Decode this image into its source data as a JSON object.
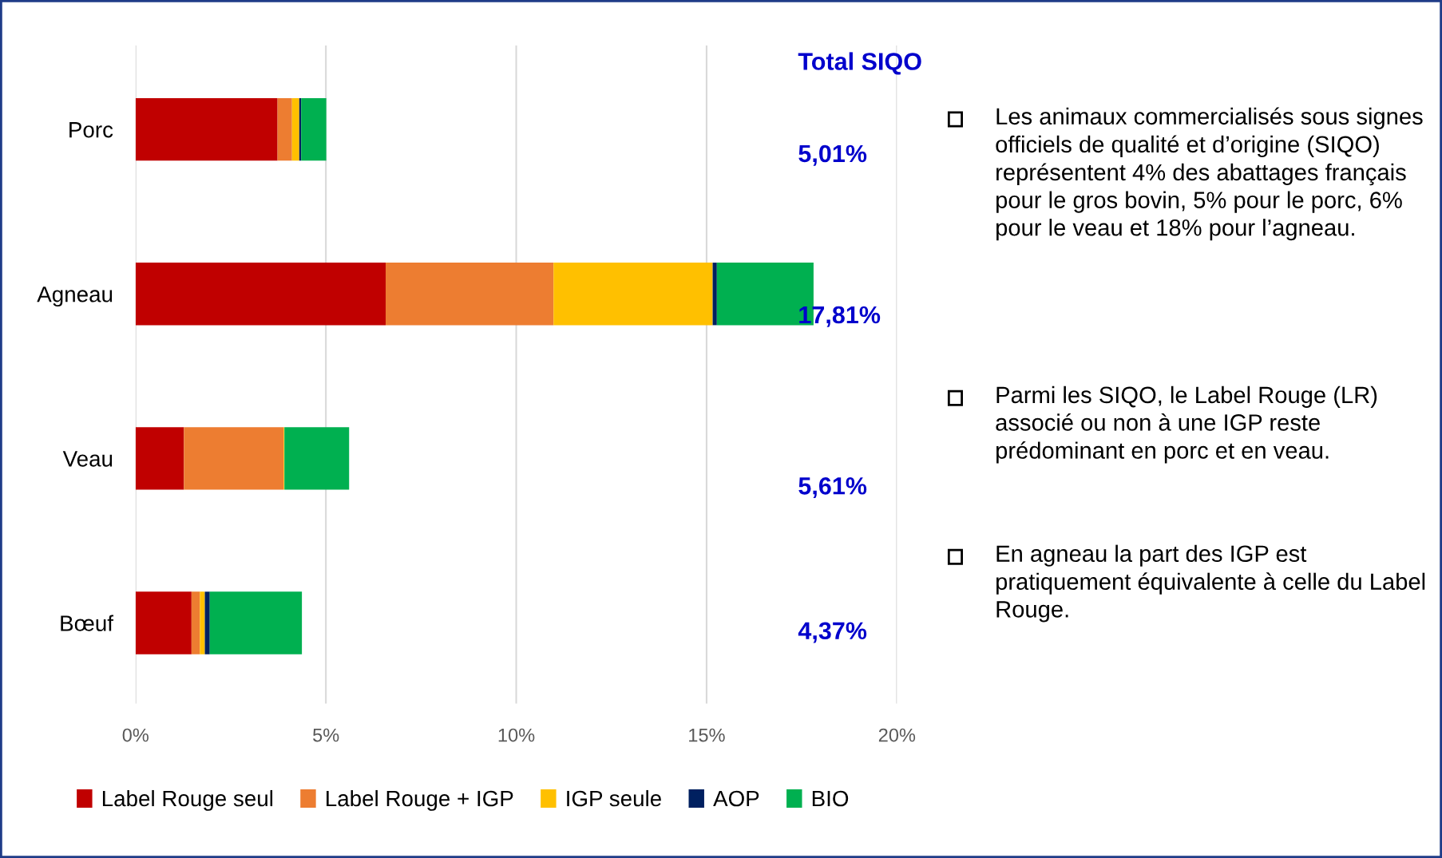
{
  "chart_data": {
    "type": "bar",
    "orientation": "horizontal",
    "stacked": true,
    "categories": [
      "Porc",
      "Agneau",
      "Veau",
      "Bœuf"
    ],
    "series": [
      {
        "name": "Label Rouge seul",
        "color": "#c00000",
        "values": [
          3.73,
          6.57,
          1.27,
          1.47
        ]
      },
      {
        "name": "Label Rouge + IGP",
        "color": "#ed7d31",
        "values": [
          0.38,
          4.41,
          2.62,
          0.22
        ]
      },
      {
        "name": "IGP seule",
        "color": "#ffc000",
        "values": [
          0.19,
          4.18,
          0.02,
          0.13
        ]
      },
      {
        "name": "AOP",
        "color": "#002060",
        "values": [
          0.05,
          0.11,
          0,
          0.13
        ]
      },
      {
        "name": "BIO",
        "color": "#00b050",
        "values": [
          0.66,
          2.54,
          1.7,
          2.42
        ]
      }
    ],
    "xlim": [
      0,
      20
    ],
    "xticks": [
      {
        "value": 0,
        "label": "0%"
      },
      {
        "value": 5,
        "label": "5%"
      },
      {
        "value": 10,
        "label": "10%"
      },
      {
        "value": 15,
        "label": "15%"
      },
      {
        "value": 20,
        "label": "20%"
      }
    ],
    "grid": "x",
    "legend": "bottom",
    "annotations": [
      "Total SIQO",
      "5,01%",
      "17,81%",
      "5,61%",
      "4,37%",
      "Les animaux commercialisés sous signes officiels de qualité et d’origine (SIQO) représentent 4% des abattages français pour le gros bovin, 5% pour le porc, 6% pour le veau et 18% pour l’agneau.",
      "Parmi les SIQO, le Label Rouge (LR) associé ou non à une IGP reste prédominant en porc et en veau.",
      "En agneau la part des IGP est pratiquement équivalente à celle du Label Rouge."
    ]
  }
}
